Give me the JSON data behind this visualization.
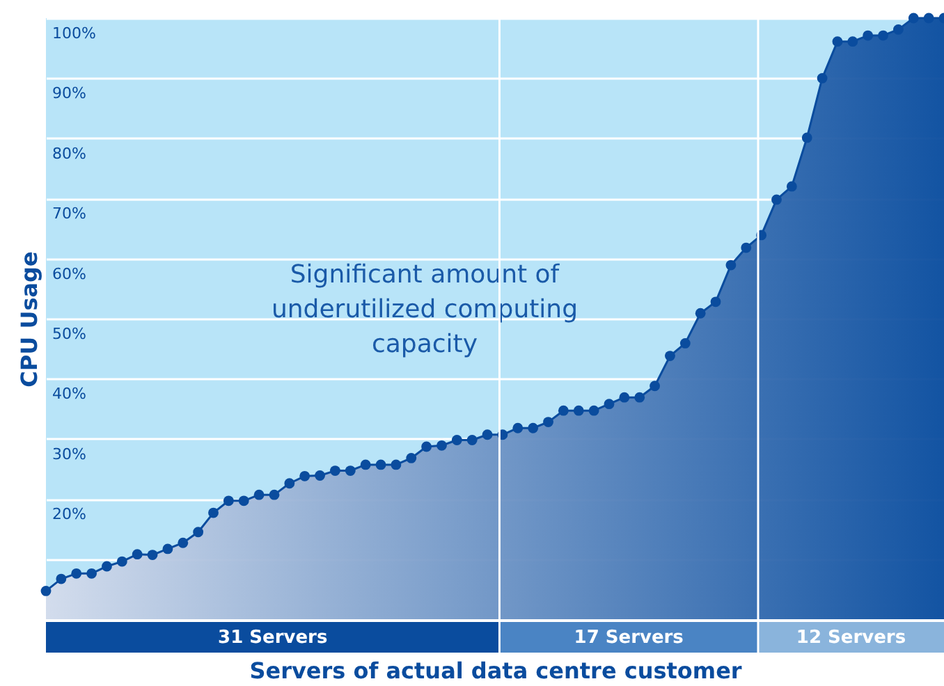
{
  "chart_data": {
    "type": "area",
    "ylabel": "CPU Usage",
    "xlabel": "Servers of actual data centre customer",
    "annotations": [
      "Significant amount of underutilized computing capacity",
      "31 Servers",
      "17 Servers",
      "12 Servers"
    ],
    "categories": [
      null,
      null,
      null,
      null,
      null,
      null,
      null,
      null,
      null,
      null,
      null,
      null,
      null,
      null,
      null,
      null,
      null,
      null,
      null,
      null,
      null,
      null,
      null,
      null,
      null,
      null,
      null,
      null,
      null,
      null,
      null,
      null,
      null,
      null,
      null,
      null,
      null,
      null,
      null,
      null,
      null,
      null,
      null,
      null,
      null,
      null,
      null,
      null,
      null,
      null,
      null,
      null,
      null,
      null,
      null,
      null,
      null,
      null,
      null,
      null
    ],
    "series": [
      {
        "color": "#0a4c9e",
        "values": [
          4.7,
          6.7,
          7.6,
          7.6,
          8.8,
          9.6,
          10.8,
          10.7,
          11.7,
          12.7,
          14.5,
          17.7,
          19.7,
          19.7,
          20.7,
          20.7,
          22.6,
          23.8,
          23.9,
          24.7,
          24.7,
          25.7,
          25.7,
          25.7,
          26.8,
          28.7,
          28.9,
          29.8,
          29.8,
          30.7,
          30.7,
          31.8,
          31.8,
          32.8,
          34.7,
          34.7,
          34.7,
          35.8,
          36.9,
          36.9,
          38.8,
          43.8,
          45.9,
          50.9,
          52.8,
          58.9,
          61.8,
          63.9,
          69.8,
          72,
          80.1,
          90,
          96.1,
          96.1,
          97.1,
          97.1,
          98.1,
          100,
          100,
          100
        ]
      }
    ],
    "ylim": [
      0,
      100
    ],
    "yticks": [
      {
        "value": 10,
        "label": null
      },
      {
        "value": 20,
        "label": "20%"
      },
      {
        "value": 30,
        "label": "30%"
      },
      {
        "value": 40,
        "label": "40%"
      },
      {
        "value": 50,
        "label": "50%"
      },
      {
        "value": 60,
        "label": "60%"
      },
      {
        "value": 70,
        "label": "70%"
      },
      {
        "value": 80,
        "label": "80%"
      },
      {
        "value": 90,
        "label": "90%"
      },
      {
        "value": 100,
        "label": "100%"
      }
    ],
    "grid": "y",
    "marker": "circle",
    "tick_labels": "y"
  }
}
